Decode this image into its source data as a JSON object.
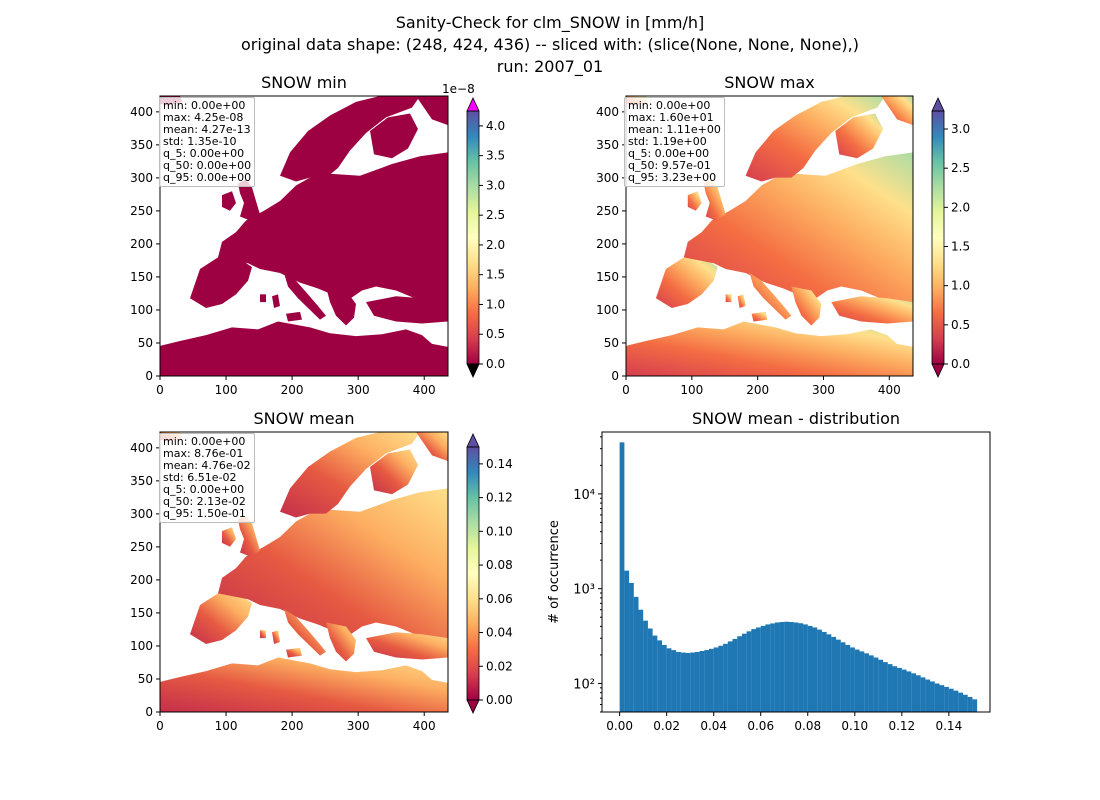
{
  "figure": {
    "title_lines": [
      "Sanity-Check for clm_SNOW in [mm/h]",
      "original data shape: (248, 424, 436) -- sliced with: (slice(None, None, None),)",
      "run: 2007_01"
    ]
  },
  "panels": [
    {
      "id": "snow-min",
      "title": "SNOW min",
      "stats": [
        "min: 0.00e+00",
        "max: 4.25e-08",
        "mean: 4.27e-13",
        "std: 1.35e-10",
        "q_5: 0.00e+00",
        "q_50: 0.00e+00",
        "q_95: 0.00e+00"
      ],
      "colorbar": {
        "offset_label": "1e−8",
        "ticks": [
          "0.0",
          "0.5",
          "1.0",
          "1.5",
          "2.0",
          "2.5",
          "3.0",
          "3.5",
          "4.0"
        ],
        "tick_values": [
          0,
          0.5,
          1.0,
          1.5,
          2.0,
          2.5,
          3.0,
          3.5,
          4.0
        ],
        "range": [
          0,
          4.25
        ],
        "extend_upper_color": "#ff00ff",
        "extend_lower_color": "#000000"
      }
    },
    {
      "id": "snow-max",
      "title": "SNOW max",
      "stats": [
        "min: 0.00e+00",
        "max: 1.60e+01",
        "mean: 1.11e+00",
        "std: 1.19e+00",
        "q_5: 0.00e+00",
        "q_50: 9.57e-01",
        "q_95: 3.23e+00"
      ],
      "colorbar": {
        "offset_label": "",
        "ticks": [
          "0.0",
          "0.5",
          "1.0",
          "1.5",
          "2.0",
          "2.5",
          "3.0"
        ],
        "tick_values": [
          0,
          0.5,
          1.0,
          1.5,
          2.0,
          2.5,
          3.0
        ],
        "range": [
          0,
          3.23
        ],
        "extend_upper_color": "#5e4fa2",
        "extend_lower_color": "#9e0142"
      }
    },
    {
      "id": "snow-mean",
      "title": "SNOW mean",
      "stats": [
        "min: 0.00e+00",
        "max: 8.76e-01",
        "mean: 4.76e-02",
        "std: 6.51e-02",
        "q_5: 0.00e+00",
        "q_50: 2.13e-02",
        "q_95: 1.50e-01"
      ],
      "colorbar": {
        "offset_label": "",
        "ticks": [
          "0.00",
          "0.02",
          "0.04",
          "0.06",
          "0.08",
          "0.10",
          "0.12",
          "0.14"
        ],
        "tick_values": [
          0,
          0.02,
          0.04,
          0.06,
          0.08,
          0.1,
          0.12,
          0.14
        ],
        "range": [
          0,
          0.15
        ],
        "extend_upper_color": "#5e4fa2",
        "extend_lower_color": "#9e0142"
      }
    }
  ],
  "map_axes": {
    "x_ticks": [
      "0",
      "100",
      "200",
      "300",
      "400"
    ],
    "x_tick_values": [
      0,
      100,
      200,
      300,
      400
    ],
    "x_range": [
      0,
      436
    ],
    "y_ticks": [
      "0",
      "50",
      "100",
      "150",
      "200",
      "250",
      "300",
      "350",
      "400"
    ],
    "y_tick_values": [
      0,
      50,
      100,
      150,
      200,
      250,
      300,
      350,
      400
    ],
    "y_range": [
      0,
      424
    ]
  },
  "chart_data": {
    "type": "bar",
    "title": "SNOW mean - distribution",
    "xlabel": "",
    "ylabel": "# of occurrence",
    "yscale": "log",
    "xlim": [
      -0.0075,
      0.1575
    ],
    "ylim": [
      50,
      45000
    ],
    "x_ticks": [
      "0.00",
      "0.02",
      "0.04",
      "0.06",
      "0.08",
      "0.10",
      "0.12",
      "0.14"
    ],
    "x_tick_values": [
      0,
      0.02,
      0.04,
      0.06,
      0.08,
      0.1,
      0.12,
      0.14
    ],
    "y_ticks": [
      "10²",
      "10³",
      "10⁴"
    ],
    "y_tick_values": [
      100,
      1000,
      10000
    ],
    "bin_width": 0.00075,
    "x": [
      0.0,
      0.002,
      0.004,
      0.006,
      0.008,
      0.01,
      0.012,
      0.014,
      0.016,
      0.018,
      0.02,
      0.022,
      0.024,
      0.026,
      0.028,
      0.03,
      0.032,
      0.034,
      0.036,
      0.038,
      0.04,
      0.042,
      0.044,
      0.046,
      0.048,
      0.05,
      0.052,
      0.054,
      0.056,
      0.058,
      0.06,
      0.062,
      0.064,
      0.066,
      0.068,
      0.07,
      0.072,
      0.074,
      0.076,
      0.078,
      0.08,
      0.082,
      0.084,
      0.086,
      0.088,
      0.09,
      0.092,
      0.094,
      0.096,
      0.098,
      0.1,
      0.102,
      0.104,
      0.106,
      0.108,
      0.11,
      0.112,
      0.114,
      0.116,
      0.118,
      0.12,
      0.122,
      0.124,
      0.126,
      0.128,
      0.13,
      0.132,
      0.134,
      0.136,
      0.138,
      0.14,
      0.142,
      0.144,
      0.146,
      0.148,
      0.15
    ],
    "values": [
      35000,
      1550,
      1150,
      820,
      600,
      460,
      380,
      320,
      285,
      255,
      235,
      225,
      215,
      212,
      210,
      212,
      215,
      220,
      225,
      232,
      240,
      250,
      262,
      278,
      295,
      315,
      335,
      355,
      375,
      390,
      405,
      420,
      430,
      440,
      445,
      448,
      445,
      440,
      432,
      420,
      405,
      390,
      370,
      350,
      330,
      310,
      290,
      272,
      255,
      240,
      228,
      218,
      208,
      198,
      188,
      178,
      168,
      160,
      152,
      146,
      140,
      134,
      128,
      122,
      116,
      110,
      105,
      100,
      96,
      92,
      88,
      84,
      80,
      76,
      72,
      68
    ]
  },
  "colors": {
    "hist_bar": "#1f77b4",
    "no_data": "#ffffff"
  }
}
